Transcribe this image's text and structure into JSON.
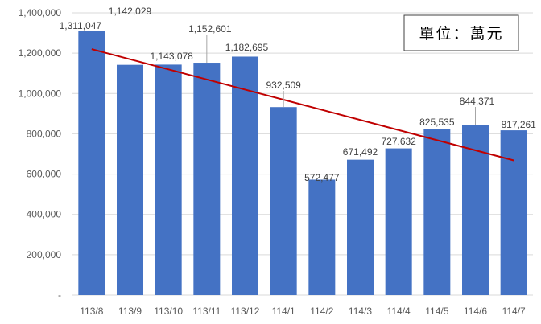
{
  "chart_data": {
    "type": "bar",
    "title": "",
    "xlabel": "",
    "ylabel": "",
    "unit_note": "單位：萬元",
    "ylim": [
      0,
      1400000
    ],
    "yticks": [
      0,
      200000,
      400000,
      600000,
      800000,
      1000000,
      1200000,
      1400000
    ],
    "ytick_labels": [
      "-",
      "200,000",
      "400,000",
      "600,000",
      "800,000",
      "1,000,000",
      "1,200,000",
      "1,400,000"
    ],
    "categories": [
      "113/8",
      "113/9",
      "113/10",
      "113/11",
      "113/12",
      "114/1",
      "114/2",
      "114/3",
      "114/4",
      "114/5",
      "114/6",
      "114/7"
    ],
    "values": [
      1311047,
      1142029,
      1143078,
      1152601,
      1182695,
      932509,
      572477,
      671492,
      727632,
      825535,
      844371,
      817261
    ],
    "value_labels": [
      "1,311,047",
      "1,142,029",
      "1,143,078",
      "1,152,601",
      "1,182,695",
      "932,509",
      "572,477",
      "671,492",
      "727,632",
      "825,535",
      "844,371",
      "817,261"
    ],
    "trendline": {
      "type": "linear",
      "start_value": 1220000,
      "end_value": 668000
    },
    "grid": true,
    "legend": "none",
    "colors": {
      "bar": "#4472C4",
      "trend": "#C00000",
      "grid": "#D9D9D9"
    }
  }
}
